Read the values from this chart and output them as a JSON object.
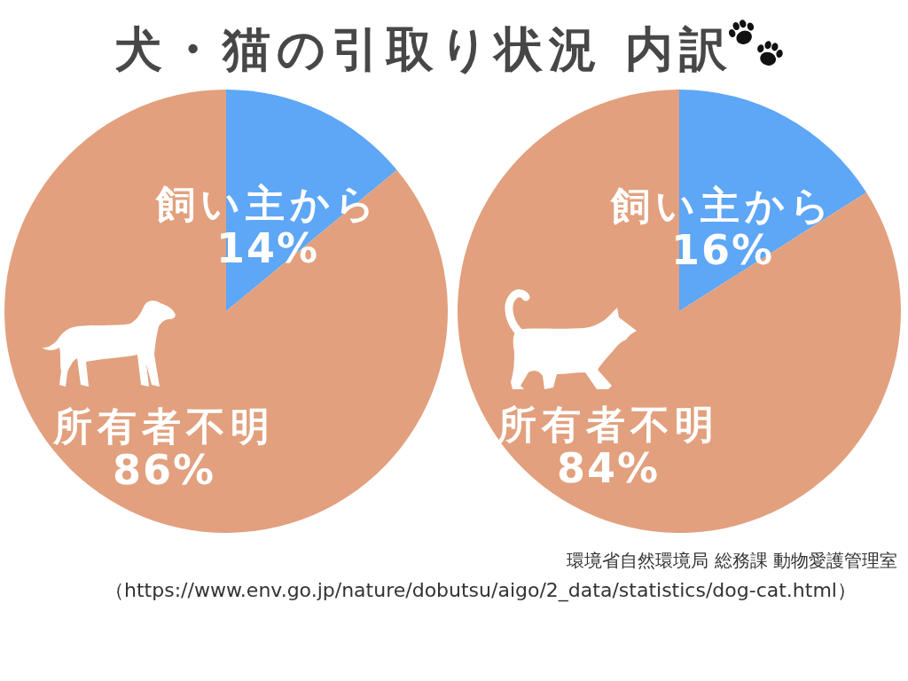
{
  "chart_data": [
    {
      "type": "pie",
      "title": "犬・猫の引取り状況 内訳",
      "categories": [
        "飼い主から",
        "所有者不明"
      ],
      "values": [
        14,
        86
      ],
      "colors": [
        "#5ea6f6",
        "#e2a07e"
      ],
      "value_labels": [
        "14%",
        "86%"
      ]
    },
    {
      "type": "pie",
      "categories": [
        "飼い主から",
        "所有者不明"
      ],
      "values": [
        16,
        84
      ],
      "colors": [
        "#5ea6f6",
        "#e2a07e"
      ],
      "value_labels": [
        "16%",
        "84%"
      ],
      "annotations": [
        "環境省自然環境局 総務課 動物愛護管理室",
        "（https://www.env.go.jp/nature/dobutsu/aigo/2_data/statistics/dog-cat.html）"
      ]
    }
  ]
}
